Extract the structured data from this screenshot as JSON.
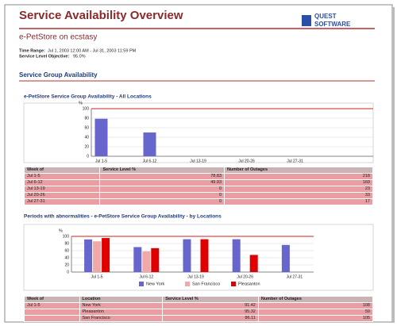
{
  "header": {
    "title": "Service Availability Overview",
    "logo_top": "QUEST",
    "logo_bottom": "SOFTWARE",
    "subtitle": "e-PetStore on ecstasy"
  },
  "info": {
    "time_range_label": "Time Range:",
    "time_range": "Jul 1, 2003 12:00 AM - Jul 31, 2003 11:59 PM",
    "slo_label": "Service Level Objective:",
    "slo": "95.0%"
  },
  "section_title": "Service Group Availability",
  "charts": [
    {
      "type": "bar",
      "title": "e-PetStore Service Group Availability - All Locations",
      "y_label": "%",
      "categories": [
        "Jul 1-5",
        "Jul 6-12",
        "Jul 13-19",
        "Jul 20-26",
        "Jul 27-31"
      ],
      "values": [
        78.83,
        49.93,
        0,
        0,
        0
      ],
      "color": "#6666cc",
      "ylim": [
        0,
        100
      ],
      "yticks": [
        0,
        20,
        40,
        60,
        80,
        100
      ],
      "grid": true
    },
    {
      "type": "bar",
      "title": "Periods with abnormalities - e-PetStore Service Group Availability - by Locations",
      "y_label": "%",
      "categories": [
        "Jul 1-5",
        "Jul 6-12",
        "Jul 13-19",
        "Jul 20-26",
        "Jul 27-31"
      ],
      "series": [
        {
          "name": "New York",
          "color": "#6666cc",
          "values": [
            91.42,
            70,
            92,
            92,
            76
          ]
        },
        {
          "name": "San Francisco",
          "color": "#f0a8a8",
          "values": [
            86.11,
            58,
            null,
            null,
            null
          ]
        },
        {
          "name": "Pleasanton",
          "color": "#e00000",
          "values": [
            95.32,
            67,
            92,
            48,
            null
          ]
        }
      ],
      "ylim": [
        0,
        100
      ],
      "yticks": [
        0,
        20,
        40,
        60,
        80,
        100
      ],
      "grid": true
    }
  ],
  "tables": [
    {
      "columns": [
        "Week of",
        "Service Level %",
        "Number of Outages"
      ],
      "rows": [
        [
          "Jul 1-5",
          78.83,
          218
        ],
        [
          "Jul 6-12",
          49.93,
          169
        ],
        [
          "Jul 13-19",
          0,
          23
        ],
        [
          "Jul 20-26",
          0,
          33
        ],
        [
          "Jul 27-31",
          0,
          17
        ]
      ]
    },
    {
      "columns": [
        "Week of",
        "Location",
        "Service Level %",
        "Number of Outages"
      ],
      "rows": [
        [
          "Jul 1-5",
          "New York",
          91.42,
          108
        ],
        [
          null,
          "Pleasanton",
          95.32,
          59
        ],
        [
          null,
          "San Francisco",
          86.11,
          105
        ]
      ]
    }
  ]
}
